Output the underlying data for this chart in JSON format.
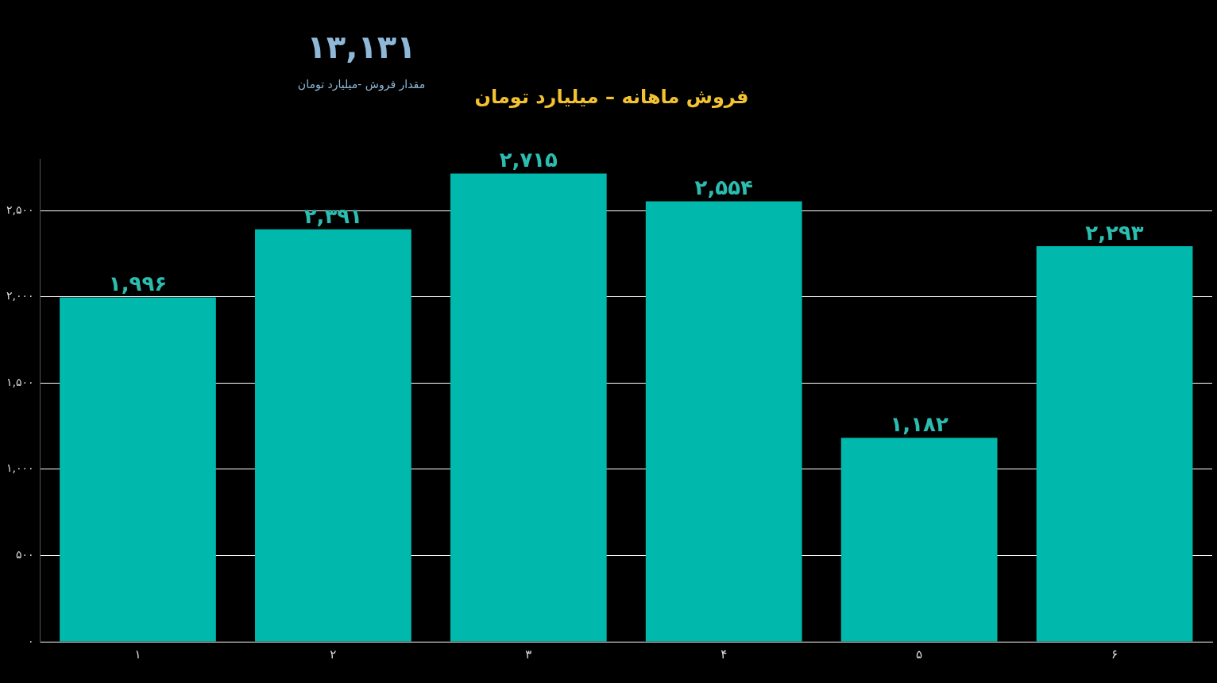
{
  "chart_data": {
    "type": "bar",
    "title": "فروش ماهانه – میلیارد تومان",
    "annotations": [
      "۱۳,۱۳۱",
      "مقدار فروش -میلیارد تومان"
    ],
    "categories": [
      "۱",
      "۲",
      "۳",
      "۴",
      "۵",
      "۶"
    ],
    "values": [
      1996,
      2391,
      2715,
      2554,
      1182,
      2293
    ],
    "value_labels": [
      "۱,۹۹۶",
      "۲,۳۹۱",
      "۲,۷۱۵",
      "۲,۵۵۴",
      "۱,۱۸۲",
      "۲,۲۹۳"
    ],
    "color": "#00b8ac",
    "ylim": [
      0,
      2800
    ],
    "yticks": [
      {
        "value": 0,
        "label": "۰"
      },
      {
        "value": 500,
        "label": "۵۰۰"
      },
      {
        "value": 1000,
        "label": "۱,۰۰۰"
      },
      {
        "value": 1500,
        "label": "۱,۵۰۰"
      },
      {
        "value": 2000,
        "label": "۲,۰۰۰"
      },
      {
        "value": 2500,
        "label": "۲,۵۰۰"
      }
    ],
    "grid": "y",
    "legend": false
  }
}
